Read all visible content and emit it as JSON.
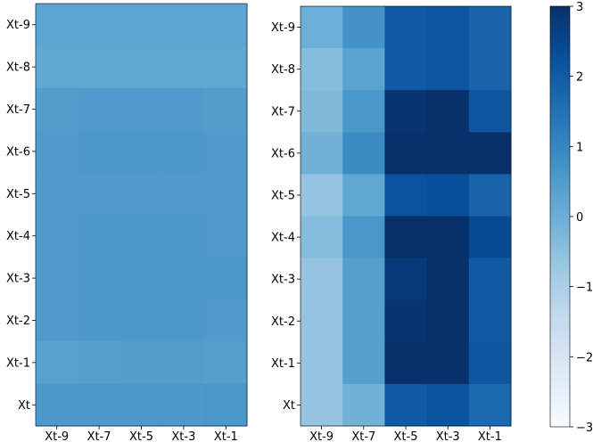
{
  "chart_data": [
    {
      "type": "heatmap",
      "title": "",
      "xlabel": "",
      "ylabel": "",
      "y_categories": [
        "Xt-9",
        "Xt-8",
        "Xt-7",
        "Xt-6",
        "Xt-5",
        "Xt-4",
        "Xt-3",
        "Xt-2",
        "Xt-1",
        "Xt"
      ],
      "x_ticklabels": [
        "Xt-9",
        "Xt-7",
        "Xt-5",
        "Xt-3",
        "Xt-1"
      ],
      "value_range": [
        -3,
        3
      ],
      "colormap": "Blues",
      "values": [
        [
          0.25,
          0.25,
          0.25,
          0.25,
          0.25
        ],
        [
          0.2,
          0.2,
          0.2,
          0.2,
          0.2
        ],
        [
          0.45,
          0.5,
          0.5,
          0.5,
          0.45
        ],
        [
          0.5,
          0.55,
          0.55,
          0.55,
          0.5
        ],
        [
          0.5,
          0.5,
          0.5,
          0.5,
          0.5
        ],
        [
          0.5,
          0.55,
          0.55,
          0.55,
          0.5
        ],
        [
          0.5,
          0.55,
          0.55,
          0.55,
          0.55
        ],
        [
          0.5,
          0.55,
          0.55,
          0.55,
          0.5
        ],
        [
          0.35,
          0.4,
          0.45,
          0.45,
          0.4
        ],
        [
          0.55,
          0.55,
          0.55,
          0.55,
          0.6
        ]
      ]
    },
    {
      "type": "heatmap",
      "title": "",
      "xlabel": "",
      "ylabel": "",
      "y_categories": [
        "Xt-9",
        "Xt-8",
        "Xt-7",
        "Xt-6",
        "Xt-5",
        "Xt-4",
        "Xt-3",
        "Xt-2",
        "Xt-1",
        "Xt"
      ],
      "x_ticklabels": [
        "Xt-9",
        "Xt-7",
        "Xt-5",
        "Xt-3",
        "Xt-1"
      ],
      "value_range": [
        -3,
        3
      ],
      "colormap": "Blues",
      "values": [
        [
          0.0,
          0.7,
          2.0,
          2.1,
          1.8
        ],
        [
          -0.4,
          0.3,
          2.0,
          2.1,
          1.8
        ],
        [
          -0.3,
          0.6,
          2.9,
          3.0,
          2.1
        ],
        [
          -0.1,
          0.9,
          3.0,
          3.0,
          3.0
        ],
        [
          -0.6,
          0.2,
          2.2,
          2.3,
          1.8
        ],
        [
          -0.4,
          0.6,
          3.0,
          3.0,
          2.4
        ],
        [
          -0.6,
          0.4,
          2.8,
          3.0,
          2.0
        ],
        [
          -0.6,
          0.4,
          2.9,
          3.0,
          2.0
        ],
        [
          -0.6,
          0.4,
          3.0,
          3.0,
          2.1
        ],
        [
          -0.6,
          -0.1,
          2.0,
          2.2,
          1.7
        ]
      ]
    }
  ],
  "colorbar": {
    "ticks": [
      "3",
      "2",
      "1",
      "0",
      "−1",
      "−2",
      "−3"
    ],
    "tick_values": [
      3,
      2,
      1,
      0,
      -1,
      -2,
      -3
    ],
    "range": [
      -3,
      3
    ]
  }
}
